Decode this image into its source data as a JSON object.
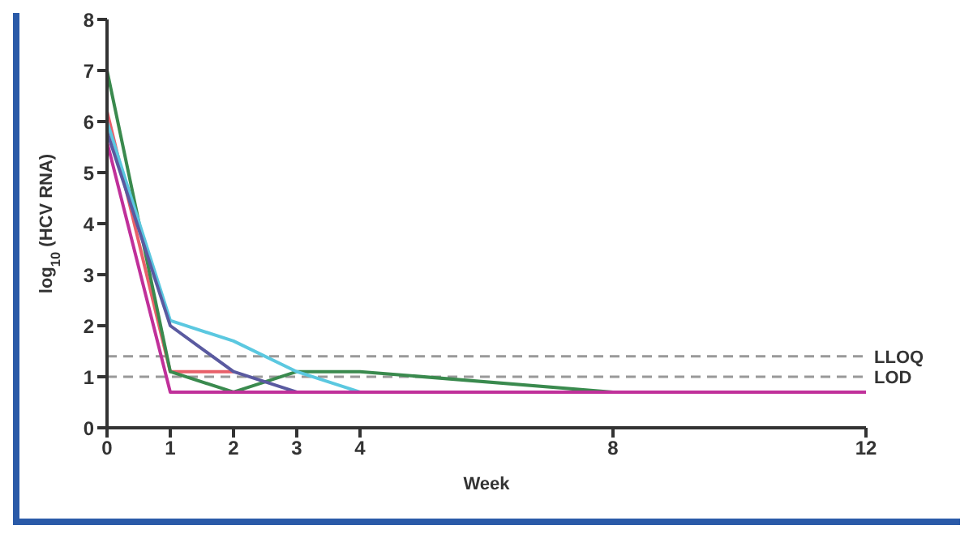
{
  "chart_data": {
    "type": "line",
    "xlabel": "Week",
    "ylabel": "log$_{10}$ (HCV RNA)",
    "x": [
      0,
      1,
      2,
      3,
      4,
      8,
      12
    ],
    "xlim": [
      0,
      12
    ],
    "xticks": [
      0,
      1,
      2,
      3,
      4,
      8,
      12
    ],
    "ylim": [
      0,
      8
    ],
    "yticks": [
      0,
      1,
      2,
      3,
      4,
      5,
      6,
      7,
      8
    ],
    "grid": false,
    "legend": false,
    "marker": "none",
    "series": [
      {
        "color": "#e8606a",
        "values": [
          6.2,
          1.1,
          1.1,
          null,
          null,
          null,
          null
        ]
      },
      {
        "color": "#3a8a4e",
        "values": [
          7.0,
          1.1,
          0.7,
          1.1,
          1.1,
          0.7,
          null
        ]
      },
      {
        "color": "#5bc8e0",
        "values": [
          6.0,
          2.1,
          1.7,
          1.1,
          0.7,
          null,
          null
        ]
      },
      {
        "color": "#5a5aa0",
        "values": [
          5.8,
          2.0,
          1.1,
          0.7,
          null,
          null,
          null
        ]
      },
      {
        "color": "#c0309a",
        "values": [
          5.6,
          0.7,
          0.7,
          0.7,
          0.7,
          0.7,
          0.7
        ]
      }
    ],
    "ref_lines": [
      {
        "axis": "y",
        "value": 1.4,
        "label": "LLOQ",
        "color": "#999999",
        "line_style": "dashed"
      },
      {
        "axis": "y",
        "value": 1,
        "label": "LOD",
        "color": "#999999",
        "line_style": "dashed"
      }
    ]
  }
}
